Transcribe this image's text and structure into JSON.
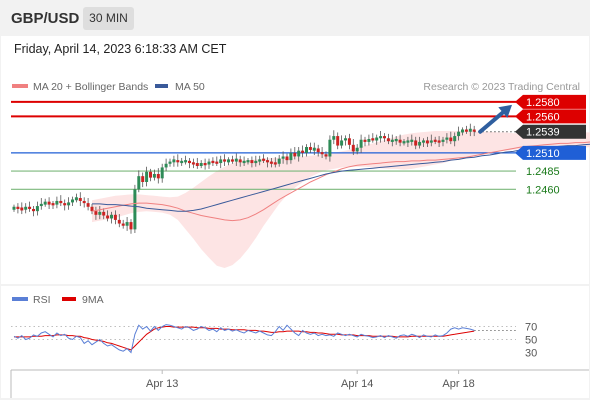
{
  "header": {
    "symbol": "GBP/USD",
    "interval": "30 MIN"
  },
  "datetime": "Friday, April 14, 2023 6:18:33 AM CET",
  "legend": {
    "bollinger": {
      "label": "MA 20 + Bollinger Bands",
      "color": "#f08080"
    },
    "ma50": {
      "label": "MA 50",
      "color": "#3a5a9a"
    }
  },
  "attribution": "Research © 2023 Trading Central",
  "colors": {
    "candle_up": "#2e8b57",
    "candle_down": "#cc2222",
    "resistance": "#dd0000",
    "pivot": "#1f5fd6",
    "support": "#7cb87c",
    "support_text": "#1a7a1a",
    "current": "#333333",
    "arrow": "#2f5f9f",
    "rsi": "#5a7fd6",
    "rsi_ma": "#dd0000"
  },
  "chart_data": [
    {
      "type": "candlestick",
      "ylim": [
        1.2352,
        1.2588
      ],
      "levels": [
        {
          "label": "1.2580",
          "value": 1.258,
          "kind": "resistance"
        },
        {
          "label": "1.2560",
          "value": 1.256,
          "kind": "resistance"
        },
        {
          "label": "1.2539",
          "value": 1.2539,
          "kind": "current"
        },
        {
          "label": "1.2510",
          "value": 1.251,
          "kind": "pivot"
        },
        {
          "label": "1.2485",
          "value": 1.2485,
          "kind": "support"
        },
        {
          "label": "1.2460",
          "value": 1.246,
          "kind": "support"
        }
      ],
      "close": [
        1.2435,
        1.2434,
        1.2432,
        1.2436,
        1.2433,
        1.243,
        1.2437,
        1.244,
        1.2442,
        1.244,
        1.2439,
        1.2444,
        1.2441,
        1.2438,
        1.2442,
        1.2446,
        1.2448,
        1.2444,
        1.2441,
        1.2436,
        1.243,
        1.2425,
        1.2429,
        1.2424,
        1.242,
        1.2425,
        1.2418,
        1.2413,
        1.241,
        1.2415,
        1.2405,
        1.246,
        1.2478,
        1.247,
        1.2484,
        1.2476,
        1.2481,
        1.2475,
        1.249,
        1.2495,
        1.2498,
        1.25,
        1.2497,
        1.2498,
        1.2499,
        1.2496,
        1.2495,
        1.2493,
        1.2495,
        1.2494,
        1.2498,
        1.2497,
        1.2496,
        1.2501,
        1.2498,
        1.25,
        1.2499,
        1.2501,
        1.2497,
        1.2498,
        1.2499,
        1.2497,
        1.2498,
        1.2501,
        1.25,
        1.2497,
        1.2496,
        1.2495,
        1.2502,
        1.2505,
        1.25,
        1.251,
        1.2505,
        1.2513,
        1.251,
        1.2518,
        1.2514,
        1.2516,
        1.2511,
        1.2508,
        1.2505,
        1.2528,
        1.2533,
        1.252,
        1.2527,
        1.253,
        1.2521,
        1.2512,
        1.2517,
        1.2528,
        1.2525,
        1.2529,
        1.2528,
        1.253,
        1.2533,
        1.253,
        1.2526,
        1.2527,
        1.2528,
        1.2524,
        1.2525,
        1.2526,
        1.2527,
        1.252,
        1.2525,
        1.2526,
        1.2524,
        1.2527,
        1.2526,
        1.2525,
        1.2528,
        1.2531,
        1.2526,
        1.2533,
        1.2539,
        1.2541,
        1.254,
        1.2542,
        1.2539
      ],
      "ma20": [
        1.243,
        1.2432,
        1.2434,
        1.2436,
        1.2438,
        1.244,
        1.2441,
        1.2441,
        1.244,
        1.2439,
        1.2437,
        1.2434,
        1.243,
        1.2427,
        1.2424,
        1.2422,
        1.242,
        1.2418,
        1.2417,
        1.2418,
        1.2421,
        1.2426,
        1.2432,
        1.2439,
        1.2446,
        1.2452,
        1.2458,
        1.2464,
        1.247,
        1.2475,
        1.248,
        1.2484,
        1.2488,
        1.2491,
        1.2493,
        1.2494,
        1.2495,
        1.2496,
        1.2497,
        1.2498,
        1.2498,
        1.2499,
        1.2499,
        1.25,
        1.25,
        1.2501,
        1.2502,
        1.2503,
        1.2504,
        1.2506,
        1.2508,
        1.251,
        1.2512,
        1.2514,
        1.2516,
        1.2518,
        1.2519,
        1.252,
        1.2521,
        1.2522,
        1.2523,
        1.2523,
        1.2524,
        1.2524,
        1.2525,
        1.2525,
        1.2525,
        1.2526,
        1.2526,
        1.2526,
        1.2527,
        1.2527,
        1.2527,
        1.2528,
        1.2529,
        1.2531,
        1.2533
      ],
      "bb_upper": [
        1.2445,
        1.2447,
        1.2449,
        1.2451,
        1.2452,
        1.2453,
        1.2453,
        1.2452,
        1.2451,
        1.245,
        1.2449,
        1.245,
        1.2455,
        1.2462,
        1.247,
        1.2478,
        1.2485,
        1.2491,
        1.2496,
        1.2499,
        1.25,
        1.2501,
        1.2502,
        1.2503,
        1.2503,
        1.2503,
        1.2504,
        1.2505,
        1.2506,
        1.2507,
        1.2508,
        1.251,
        1.2512,
        1.2514,
        1.2517,
        1.252,
        1.2523,
        1.2526,
        1.2529,
        1.2532,
        1.2535,
        1.2537,
        1.2538,
        1.2539,
        1.254,
        1.254,
        1.254,
        1.254,
        1.254,
        1.2539,
        1.2539,
        1.2539,
        1.2538,
        1.2538,
        1.2537,
        1.2537,
        1.2537,
        1.2537,
        1.2537,
        1.2537,
        1.2537,
        1.2537,
        1.2538,
        1.2538,
        1.2538,
        1.2538,
        1.2538,
        1.2538,
        1.2538,
        1.2538,
        1.2538,
        1.2539,
        1.2539,
        1.254,
        1.2541,
        1.2542,
        1.2543
      ],
      "bb_lower": [
        1.2415,
        1.2417,
        1.2419,
        1.2421,
        1.2424,
        1.2427,
        1.2429,
        1.243,
        1.2429,
        1.2428,
        1.2425,
        1.2418,
        1.2405,
        1.2392,
        1.2378,
        1.2366,
        1.2355,
        1.2352,
        1.2356,
        1.2365,
        1.2378,
        1.2393,
        1.241,
        1.2425,
        1.244,
        1.2452,
        1.2462,
        1.247,
        1.2477,
        1.2482,
        1.2486,
        1.2488,
        1.249,
        1.2491,
        1.2491,
        1.2491,
        1.249,
        1.2489,
        1.2488,
        1.2488,
        1.2487,
        1.2488,
        1.249,
        1.2492,
        1.2494,
        1.2496,
        1.2499,
        1.2502,
        1.2504,
        1.2506,
        1.2508,
        1.251,
        1.2512,
        1.2513,
        1.2514,
        1.2515,
        1.2515,
        1.2515,
        1.2516,
        1.2516,
        1.2517,
        1.2517,
        1.2517,
        1.2517,
        1.2518,
        1.2519,
        1.252,
        1.2521,
        1.2522,
        1.2524,
        1.2526,
        1.2528,
        1.253,
        1.2531,
        1.2532,
        1.2533,
        1.2534
      ],
      "ma50": [
        1.244,
        1.244,
        1.2439,
        1.2439,
        1.2438,
        1.2437,
        1.2436,
        1.2434,
        1.2433,
        1.2432,
        1.2431,
        1.243,
        1.243,
        1.2431,
        1.2433,
        1.2436,
        1.2439,
        1.2442,
        1.2445,
        1.2448,
        1.2451,
        1.2454,
        1.2457,
        1.246,
        1.2463,
        1.2466,
        1.2469,
        1.2472,
        1.2475,
        1.2478,
        1.2481,
        1.2483,
        1.2485,
        1.2486,
        1.2487,
        1.2488,
        1.2489,
        1.249,
        1.2491,
        1.2492,
        1.2493,
        1.2494,
        1.2495,
        1.2496,
        1.2497,
        1.2498,
        1.25,
        1.2501,
        1.2503,
        1.2504,
        1.2506,
        1.2507,
        1.2509,
        1.2511,
        1.2512,
        1.2514,
        1.2515,
        1.2516,
        1.2517,
        1.2518,
        1.2519,
        1.252,
        1.252,
        1.2521,
        1.2522,
        1.2522,
        1.2523,
        1.2523,
        1.2524,
        1.2524,
        1.2525,
        1.2525,
        1.2525,
        1.2526,
        1.2526,
        1.2527,
        1.2527
      ]
    },
    {
      "type": "line",
      "legend": [
        {
          "name": "RSI"
        },
        {
          "name": "9MA"
        }
      ],
      "ylim": [
        20,
        80
      ],
      "ticks": [
        {
          "label": "70",
          "value": 70
        },
        {
          "label": "50",
          "value": 50
        },
        {
          "label": "30",
          "value": 30
        }
      ],
      "x_labels": [
        {
          "label": "Apr 13",
          "index": 38
        },
        {
          "label": "Apr 14",
          "index": 88
        },
        {
          "label": "Apr 18",
          "index": 114
        }
      ],
      "series": [
        {
          "name": "RSI",
          "values": [
            55,
            52,
            56,
            50,
            52,
            57,
            55,
            60,
            62,
            58,
            54,
            60,
            56,
            58,
            52,
            50,
            55,
            53,
            44,
            48,
            42,
            46,
            50,
            44,
            40,
            42,
            38,
            34,
            32,
            36,
            30,
            58,
            72,
            66,
            70,
            63,
            70,
            64,
            70,
            73,
            72,
            70,
            68,
            66,
            70,
            68,
            64,
            66,
            70,
            68,
            64,
            66,
            62,
            68,
            64,
            66,
            63,
            65,
            62,
            60,
            64,
            62,
            60,
            63,
            60,
            57,
            56,
            62,
            70,
            64,
            72,
            66,
            60,
            56,
            64,
            60,
            58,
            60,
            56,
            58,
            56,
            57,
            55,
            60,
            58,
            56,
            58,
            56,
            54,
            58,
            56,
            55,
            53,
            54,
            56,
            53,
            56,
            54,
            52,
            56,
            57,
            55,
            58,
            56,
            53,
            57,
            55,
            54,
            57,
            55,
            56,
            60,
            66,
            68,
            66,
            68,
            67,
            66,
            64
          ]
        },
        {
          "name": "9MA",
          "values": [
            54,
            54,
            54,
            54,
            54,
            55,
            55,
            55,
            56,
            56,
            56,
            57,
            57,
            57,
            56,
            56,
            55,
            55,
            53,
            52,
            50,
            49,
            48,
            47,
            45,
            44,
            42,
            40,
            38,
            36,
            34,
            40,
            46,
            52,
            58,
            62,
            66,
            68,
            69,
            70,
            70,
            69,
            69,
            69,
            69,
            69,
            69,
            68,
            68,
            68,
            67,
            67,
            67,
            66,
            66,
            66,
            65,
            65,
            65,
            65,
            64,
            64,
            64,
            63,
            63,
            62,
            61,
            61,
            62,
            62,
            63,
            63,
            63,
            63,
            62,
            62,
            61,
            61,
            60,
            60,
            59,
            58,
            58,
            58,
            57,
            57,
            57,
            57,
            56,
            56,
            56,
            56,
            55,
            55,
            55,
            55,
            55,
            55,
            54,
            54,
            54,
            54,
            55,
            55,
            55,
            55,
            55,
            55,
            55,
            55,
            55,
            56,
            57,
            58,
            59,
            60,
            61,
            62,
            63
          ]
        }
      ]
    }
  ]
}
